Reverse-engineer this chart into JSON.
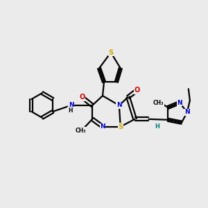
{
  "background_color": "#ebebeb",
  "line_color": "#000000",
  "bond_width": 1.6,
  "figsize": [
    3.0,
    3.0
  ],
  "dpi": 100,
  "colors": {
    "S": "#ccaa00",
    "N": "#0000cc",
    "O": "#cc0000",
    "C": "#000000",
    "H": "#008080"
  }
}
